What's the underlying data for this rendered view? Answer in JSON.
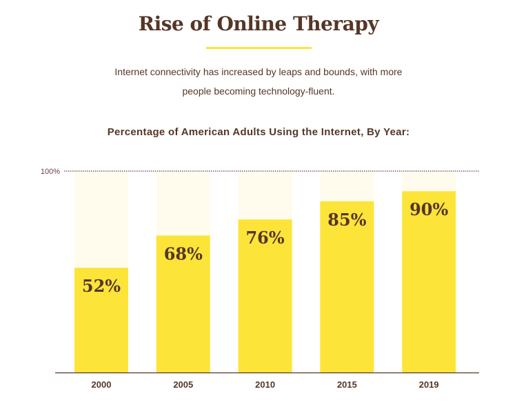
{
  "header": {
    "title": "Rise of Online Therapy",
    "subtitle": "Internet connectivity has increased by leaps and bounds, with more people becoming technology-fluent."
  },
  "chart_data": {
    "type": "bar",
    "title": "Percentage of American Adults Using the Internet, By Year:",
    "categories": [
      "2000",
      "2005",
      "2010",
      "2015",
      "2019"
    ],
    "values": [
      52,
      68,
      76,
      85,
      90
    ],
    "data_labels": [
      "52%",
      "68%",
      "76%",
      "85%",
      "90%"
    ],
    "ylim": [
      0,
      100
    ],
    "reference_line_label": "100%",
    "colors": {
      "bar": "#fde439",
      "background_bar": "#fffcee",
      "text": "#553627",
      "axis": "#553627",
      "reference": "#6b3a4a"
    }
  }
}
